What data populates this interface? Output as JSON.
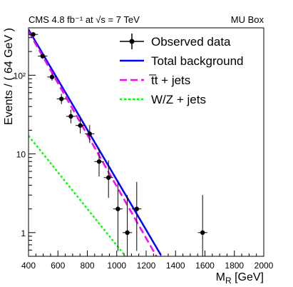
{
  "chart_data": {
    "type": "scatter",
    "header_left": "CMS  4.8 fb⁻¹ at √s = 7 TeV",
    "header_right": "MU Box",
    "xlabel": "M_R [GeV]",
    "ylabel": "Events / ( 64 GeV )",
    "xlim": [
      400,
      2000
    ],
    "ylim": [
      0.5,
      400
    ],
    "yscale": "log",
    "x_ticks": [
      400,
      600,
      800,
      1000,
      1200,
      1400,
      1600,
      1800,
      2000
    ],
    "y_ticks": [
      {
        "value": 1,
        "label": "1"
      },
      {
        "value": 10,
        "label": "10"
      },
      {
        "value": 100,
        "label": "10²"
      }
    ],
    "colors": {
      "observed": "#000000",
      "total": "#0000ff",
      "ttbar": "#ff00ff",
      "wz": "#00ff00"
    },
    "legend": {
      "placement": "top-right",
      "entries": [
        {
          "key": "observed",
          "label": "Observed data",
          "style": "marker"
        },
        {
          "key": "total",
          "label": "Total background",
          "style": "solid"
        },
        {
          "key": "ttbar",
          "label": "t̅t + jets",
          "style": "dashed"
        },
        {
          "key": "wz",
          "label": "W/Z + jets",
          "style": "dotted"
        }
      ]
    },
    "bin_width": 64,
    "observed": {
      "name": "Observed data",
      "x": [
        432,
        496,
        560,
        624,
        688,
        752,
        816,
        880,
        944,
        1008,
        1072,
        1136,
        1584
      ],
      "y": [
        330,
        175,
        95,
        50,
        30,
        23,
        18,
        8,
        5,
        2,
        1,
        2,
        1
      ]
    },
    "series": [
      {
        "name": "Total background",
        "key": "total",
        "x": [
          400,
          1300
        ],
        "y": [
          380,
          0.52
        ]
      },
      {
        "name": "t̅t + jets",
        "key": "ttbar",
        "x": [
          400,
          1270
        ],
        "y": [
          360,
          0.5
        ]
      },
      {
        "name": "W/Z + jets",
        "key": "wz",
        "x": [
          400,
          1060
        ],
        "y": [
          17,
          0.5
        ]
      }
    ]
  }
}
